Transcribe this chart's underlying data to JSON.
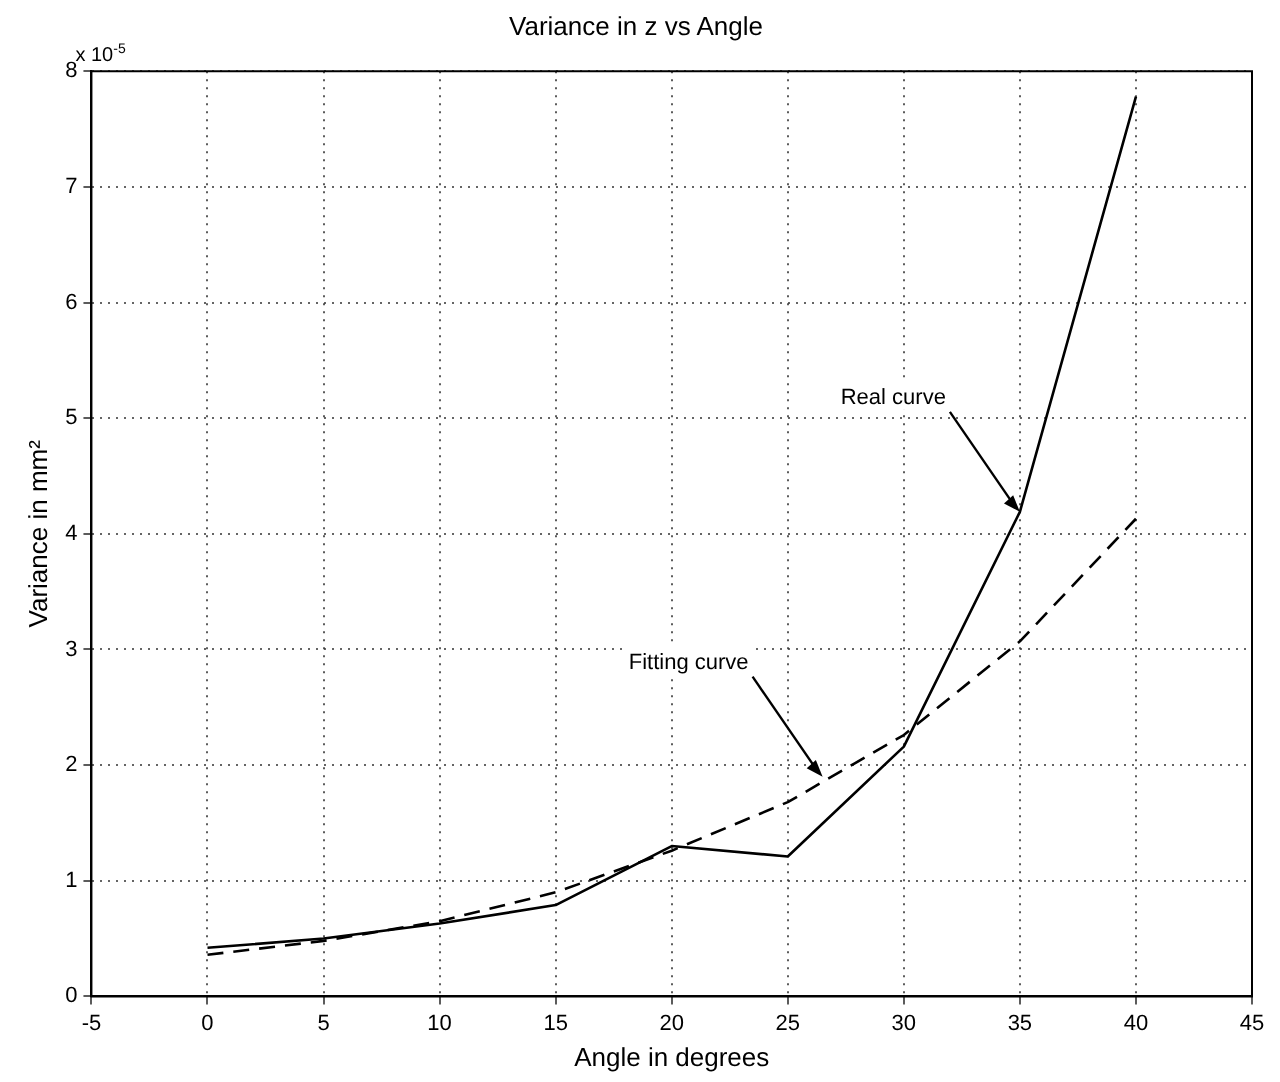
{
  "chart_data": {
    "type": "line",
    "title": "Variance in z vs Angle",
    "xlabel": "Angle in degrees",
    "ylabel": "Variance in mm²",
    "x": [
      0,
      5,
      10,
      15,
      20,
      25,
      30,
      35,
      40
    ],
    "series": [
      {
        "color": "#000000",
        "line_style": "solid",
        "values": [
          0.42,
          0.5,
          0.63,
          0.79,
          1.3,
          1.21,
          2.16,
          4.19,
          7.78
        ]
      },
      {
        "color": "#000000",
        "line_style": "dashed",
        "values": [
          0.36,
          0.48,
          0.65,
          0.9,
          1.26,
          1.68,
          2.26,
          3.07,
          4.13
        ]
      }
    ],
    "xlim": [
      -5,
      45
    ],
    "xticks": [
      -5,
      0,
      5,
      10,
      15,
      20,
      25,
      30,
      35,
      40,
      45
    ],
    "ylim": [
      0,
      8
    ],
    "yticks": [
      0,
      1,
      2,
      3,
      4,
      5,
      6,
      7,
      8
    ],
    "grid": true,
    "legend": false,
    "marker": "none",
    "annotations": [
      "x 10$^{-5}$",
      {
        "text": "Real curve",
        "x": 35,
        "y": 4.19
      },
      {
        "text": "Fitting curve",
        "x": 26.5,
        "y": 1.9
      }
    ]
  }
}
